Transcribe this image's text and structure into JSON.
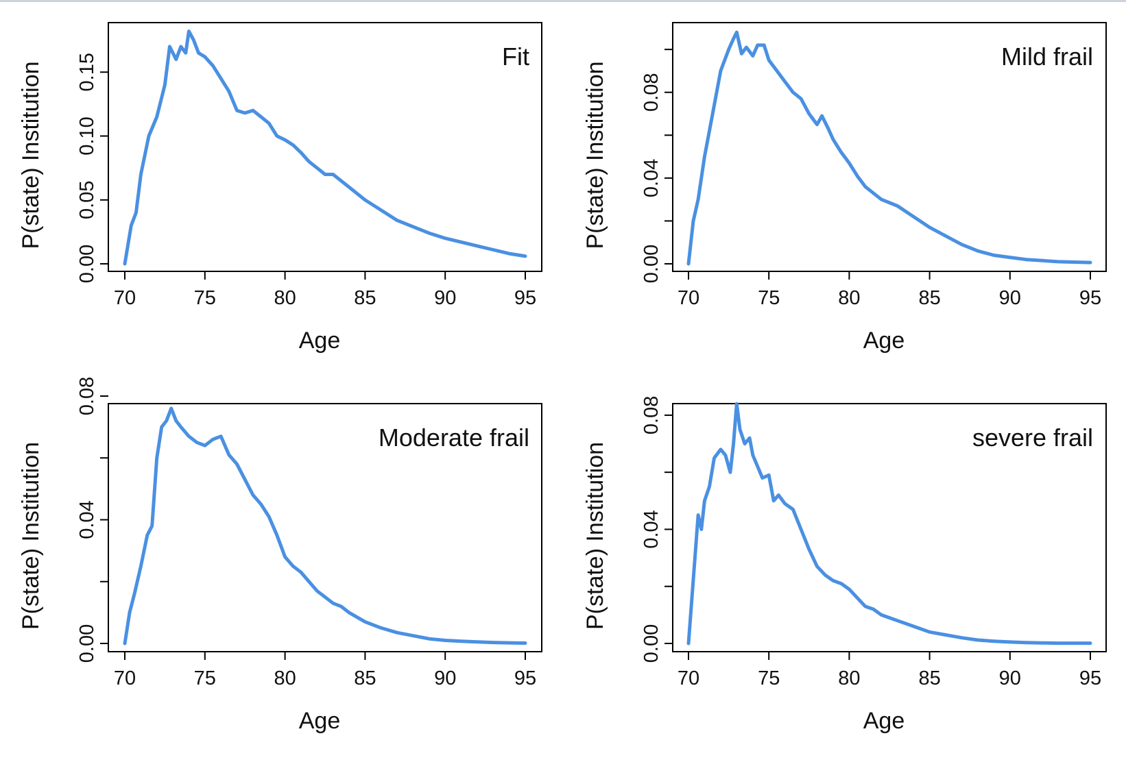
{
  "chart_data": [
    {
      "type": "line",
      "label": "Fit",
      "xlabel": "Age",
      "ylabel": "P(state) Institution",
      "xlim": [
        70,
        95
      ],
      "ylim": [
        0,
        0.185
      ],
      "x_ticks": [
        70,
        75,
        80,
        85,
        90,
        95
      ],
      "x_tick_labels": [
        "70",
        "75",
        "80",
        "85",
        "90",
        "95"
      ],
      "y_ticks": [
        0,
        0.05,
        0.1,
        0.15
      ],
      "y_tick_labels": [
        "0.00",
        "0.05",
        "0.10",
        "0.15"
      ],
      "color": "#4a90e2",
      "series": [
        {
          "x": [
            70,
            70.4,
            70.7,
            71,
            71.5,
            72,
            72.5,
            72.8,
            73.2,
            73.5,
            73.8,
            74,
            74.3,
            74.6,
            75,
            75.5,
            76,
            76.5,
            77,
            77.5,
            78,
            78.5,
            79,
            79.5,
            80,
            80.5,
            81,
            81.5,
            82,
            82.5,
            83,
            83.5,
            84,
            85,
            86,
            87,
            88,
            89,
            90,
            91,
            92,
            93,
            94,
            95
          ],
          "y": [
            0,
            0.03,
            0.04,
            0.07,
            0.1,
            0.115,
            0.14,
            0.17,
            0.16,
            0.17,
            0.165,
            0.182,
            0.175,
            0.165,
            0.162,
            0.155,
            0.145,
            0.135,
            0.12,
            0.118,
            0.12,
            0.115,
            0.11,
            0.1,
            0.097,
            0.093,
            0.087,
            0.08,
            0.075,
            0.07,
            0.07,
            0.065,
            0.06,
            0.05,
            0.042,
            0.034,
            0.029,
            0.024,
            0.02,
            0.017,
            0.014,
            0.011,
            0.008,
            0.006
          ]
        }
      ]
    },
    {
      "type": "line",
      "label": "Mild frail",
      "xlabel": "Age",
      "ylabel": "P(state) Institution",
      "xlim": [
        70,
        95
      ],
      "ylim": [
        0,
        0.109
      ],
      "x_ticks": [
        70,
        75,
        80,
        85,
        90,
        95
      ],
      "x_tick_labels": [
        "70",
        "75",
        "80",
        "85",
        "90",
        "95"
      ],
      "y_ticks": [
        0,
        0.02,
        0.04,
        0.06,
        0.08,
        0.1
      ],
      "y_tick_labels": [
        "0.00",
        "",
        "0.04",
        "",
        "0.08",
        ""
      ],
      "color": "#4a90e2",
      "series": [
        {
          "x": [
            70,
            70.3,
            70.6,
            71,
            71.5,
            72,
            72.5,
            72.8,
            73,
            73.3,
            73.6,
            74,
            74.3,
            74.7,
            75,
            75.5,
            76,
            76.5,
            77,
            77.5,
            78,
            78.3,
            78.7,
            79,
            79.5,
            80,
            80.5,
            81,
            81.5,
            82,
            83,
            84,
            85,
            86,
            87,
            88,
            89,
            90,
            91,
            92,
            93,
            94,
            95
          ],
          "y": [
            0,
            0.02,
            0.03,
            0.05,
            0.07,
            0.09,
            0.1,
            0.105,
            0.108,
            0.098,
            0.101,
            0.097,
            0.102,
            0.102,
            0.095,
            0.09,
            0.085,
            0.08,
            0.077,
            0.07,
            0.065,
            0.069,
            0.063,
            0.058,
            0.052,
            0.047,
            0.041,
            0.036,
            0.033,
            0.03,
            0.027,
            0.022,
            0.017,
            0.013,
            0.009,
            0.006,
            0.004,
            0.003,
            0.002,
            0.0015,
            0.001,
            0.0008,
            0.0006
          ]
        }
      ]
    },
    {
      "type": "line",
      "label": "Moderate frail",
      "xlabel": "Age",
      "ylabel": "P(state) Institution",
      "xlim": [
        70,
        95
      ],
      "ylim": [
        0,
        0.08
      ],
      "x_ticks": [
        70,
        75,
        80,
        85,
        90,
        95
      ],
      "x_tick_labels": [
        "70",
        "75",
        "80",
        "85",
        "90",
        "95"
      ],
      "y_ticks": [
        0,
        0.02,
        0.04,
        0.06,
        0.08
      ],
      "y_tick_labels": [
        "0.00",
        "",
        "0.04",
        "",
        "0.08"
      ],
      "color": "#4a90e2",
      "series": [
        {
          "x": [
            70,
            70.3,
            70.6,
            71,
            71.4,
            71.7,
            72,
            72.3,
            72.6,
            72.9,
            73.2,
            73.5,
            74,
            74.5,
            75,
            75.5,
            76,
            76.5,
            77,
            77.5,
            78,
            78.5,
            79,
            79.5,
            80,
            80.5,
            81,
            81.5,
            82,
            82.5,
            83,
            83.5,
            84,
            85,
            86,
            87,
            88,
            89,
            90,
            91,
            92,
            93,
            94,
            95
          ],
          "y": [
            0,
            0.01,
            0.016,
            0.025,
            0.035,
            0.038,
            0.06,
            0.07,
            0.072,
            0.076,
            0.072,
            0.07,
            0.067,
            0.065,
            0.064,
            0.066,
            0.067,
            0.061,
            0.058,
            0.053,
            0.048,
            0.045,
            0.041,
            0.035,
            0.028,
            0.025,
            0.023,
            0.02,
            0.017,
            0.015,
            0.013,
            0.012,
            0.01,
            0.007,
            0.005,
            0.0035,
            0.0025,
            0.0015,
            0.001,
            0.0007,
            0.0005,
            0.0003,
            0.0002,
            0.0001
          ]
        }
      ]
    },
    {
      "type": "line",
      "label": "severe frail",
      "xlabel": "Age",
      "ylabel": "P(state) Institution",
      "xlim": [
        70,
        95
      ],
      "ylim": [
        0,
        0.0855
      ],
      "x_ticks": [
        70,
        75,
        80,
        85,
        90,
        95
      ],
      "x_tick_labels": [
        "70",
        "75",
        "80",
        "85",
        "90",
        "95"
      ],
      "y_ticks": [
        0,
        0.02,
        0.04,
        0.06,
        0.08
      ],
      "y_tick_labels": [
        "0.00",
        "",
        "0.04",
        "",
        "0.08"
      ],
      "color": "#4a90e2",
      "series": [
        {
          "x": [
            70,
            70.2,
            70.4,
            70.6,
            70.8,
            71,
            71.3,
            71.6,
            72,
            72.3,
            72.6,
            72.8,
            73,
            73.2,
            73.5,
            73.8,
            74,
            74.3,
            74.6,
            75,
            75.3,
            75.6,
            76,
            76.5,
            77,
            77.5,
            78,
            78.5,
            79,
            79.5,
            80,
            80.5,
            81,
            81.5,
            82,
            82.5,
            83,
            84,
            85,
            86,
            87,
            88,
            89,
            90,
            91,
            92,
            93,
            94,
            95
          ],
          "y": [
            0,
            0.015,
            0.03,
            0.045,
            0.04,
            0.05,
            0.055,
            0.065,
            0.068,
            0.066,
            0.06,
            0.07,
            0.084,
            0.075,
            0.07,
            0.072,
            0.066,
            0.062,
            0.058,
            0.059,
            0.05,
            0.052,
            0.049,
            0.047,
            0.04,
            0.033,
            0.027,
            0.024,
            0.022,
            0.021,
            0.019,
            0.016,
            0.013,
            0.012,
            0.01,
            0.009,
            0.008,
            0.006,
            0.004,
            0.003,
            0.002,
            0.0012,
            0.0008,
            0.0005,
            0.0003,
            0.0002,
            0.0001,
            0.0001,
            0.0001
          ]
        }
      ]
    }
  ]
}
